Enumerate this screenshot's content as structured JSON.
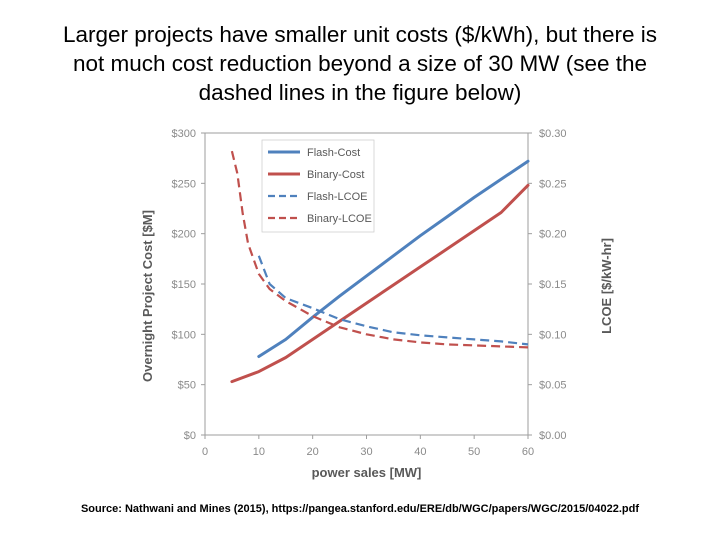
{
  "slide": {
    "title_lines": [
      "Larger projects have smaller unit costs ($/kWh), but there is",
      "not much cost reduction beyond a size of 30 MW (see the",
      "dashed lines in the figure below)"
    ],
    "source": "Source: Nathwani and Mines (2015), https://pangea.stanford.edu/ERE/db/WGC/papers/WGC/2015/04022.pdf"
  },
  "chart_data": {
    "type": "line",
    "title": "",
    "xlabel": "power sales [MW]",
    "ylabel": "Overnight Project Cost [$M]",
    "y2label": "LCOE [$/kW-hr]",
    "xlim": [
      0,
      60
    ],
    "ylim": [
      0,
      300
    ],
    "y2lim": [
      0.0,
      0.3
    ],
    "x_ticks": [
      "0",
      "10",
      "20",
      "30",
      "40",
      "50",
      "60"
    ],
    "y_ticks": [
      "$0",
      "$50",
      "$100",
      "$150",
      "$200",
      "$250",
      "$300"
    ],
    "y2_ticks": [
      "$0.00",
      "$0.05",
      "$0.10",
      "$0.15",
      "$0.20",
      "$0.25",
      "$0.30"
    ],
    "grid": false,
    "legend_position": "top-left",
    "series": [
      {
        "name": "Flash-Cost",
        "axis": "left",
        "style": "solid",
        "color": "#4f81bd",
        "x": [
          10,
          15,
          20,
          25,
          30,
          35,
          40,
          45,
          50,
          55,
          60
        ],
        "y": [
          78,
          95,
          117,
          138,
          158,
          178,
          198,
          217,
          236,
          254,
          272
        ]
      },
      {
        "name": "Binary-Cost",
        "axis": "left",
        "style": "solid",
        "color": "#c0504d",
        "x": [
          5,
          10,
          15,
          20,
          25,
          30,
          35,
          40,
          45,
          50,
          55,
          60
        ],
        "y": [
          53,
          63,
          77,
          95,
          113,
          131,
          149,
          167,
          185,
          203,
          221,
          248
        ]
      },
      {
        "name": "Flash-LCOE",
        "axis": "right",
        "style": "dashed",
        "color": "#4f81bd",
        "x": [
          10,
          12,
          15,
          20,
          25,
          30,
          35,
          40,
          45,
          50,
          55,
          60
        ],
        "y": [
          0.178,
          0.15,
          0.136,
          0.126,
          0.115,
          0.108,
          0.102,
          0.099,
          0.097,
          0.095,
          0.093,
          0.09
        ]
      },
      {
        "name": "Binary-LCOE",
        "axis": "right",
        "style": "dashed",
        "color": "#c0504d",
        "x": [
          5,
          6,
          7,
          8,
          10,
          12,
          15,
          20,
          25,
          30,
          35,
          40,
          45,
          50,
          55,
          60
        ],
        "y": [
          0.282,
          0.26,
          0.22,
          0.19,
          0.16,
          0.145,
          0.133,
          0.118,
          0.107,
          0.1,
          0.095,
          0.092,
          0.09,
          0.089,
          0.088,
          0.087
        ]
      }
    ]
  }
}
